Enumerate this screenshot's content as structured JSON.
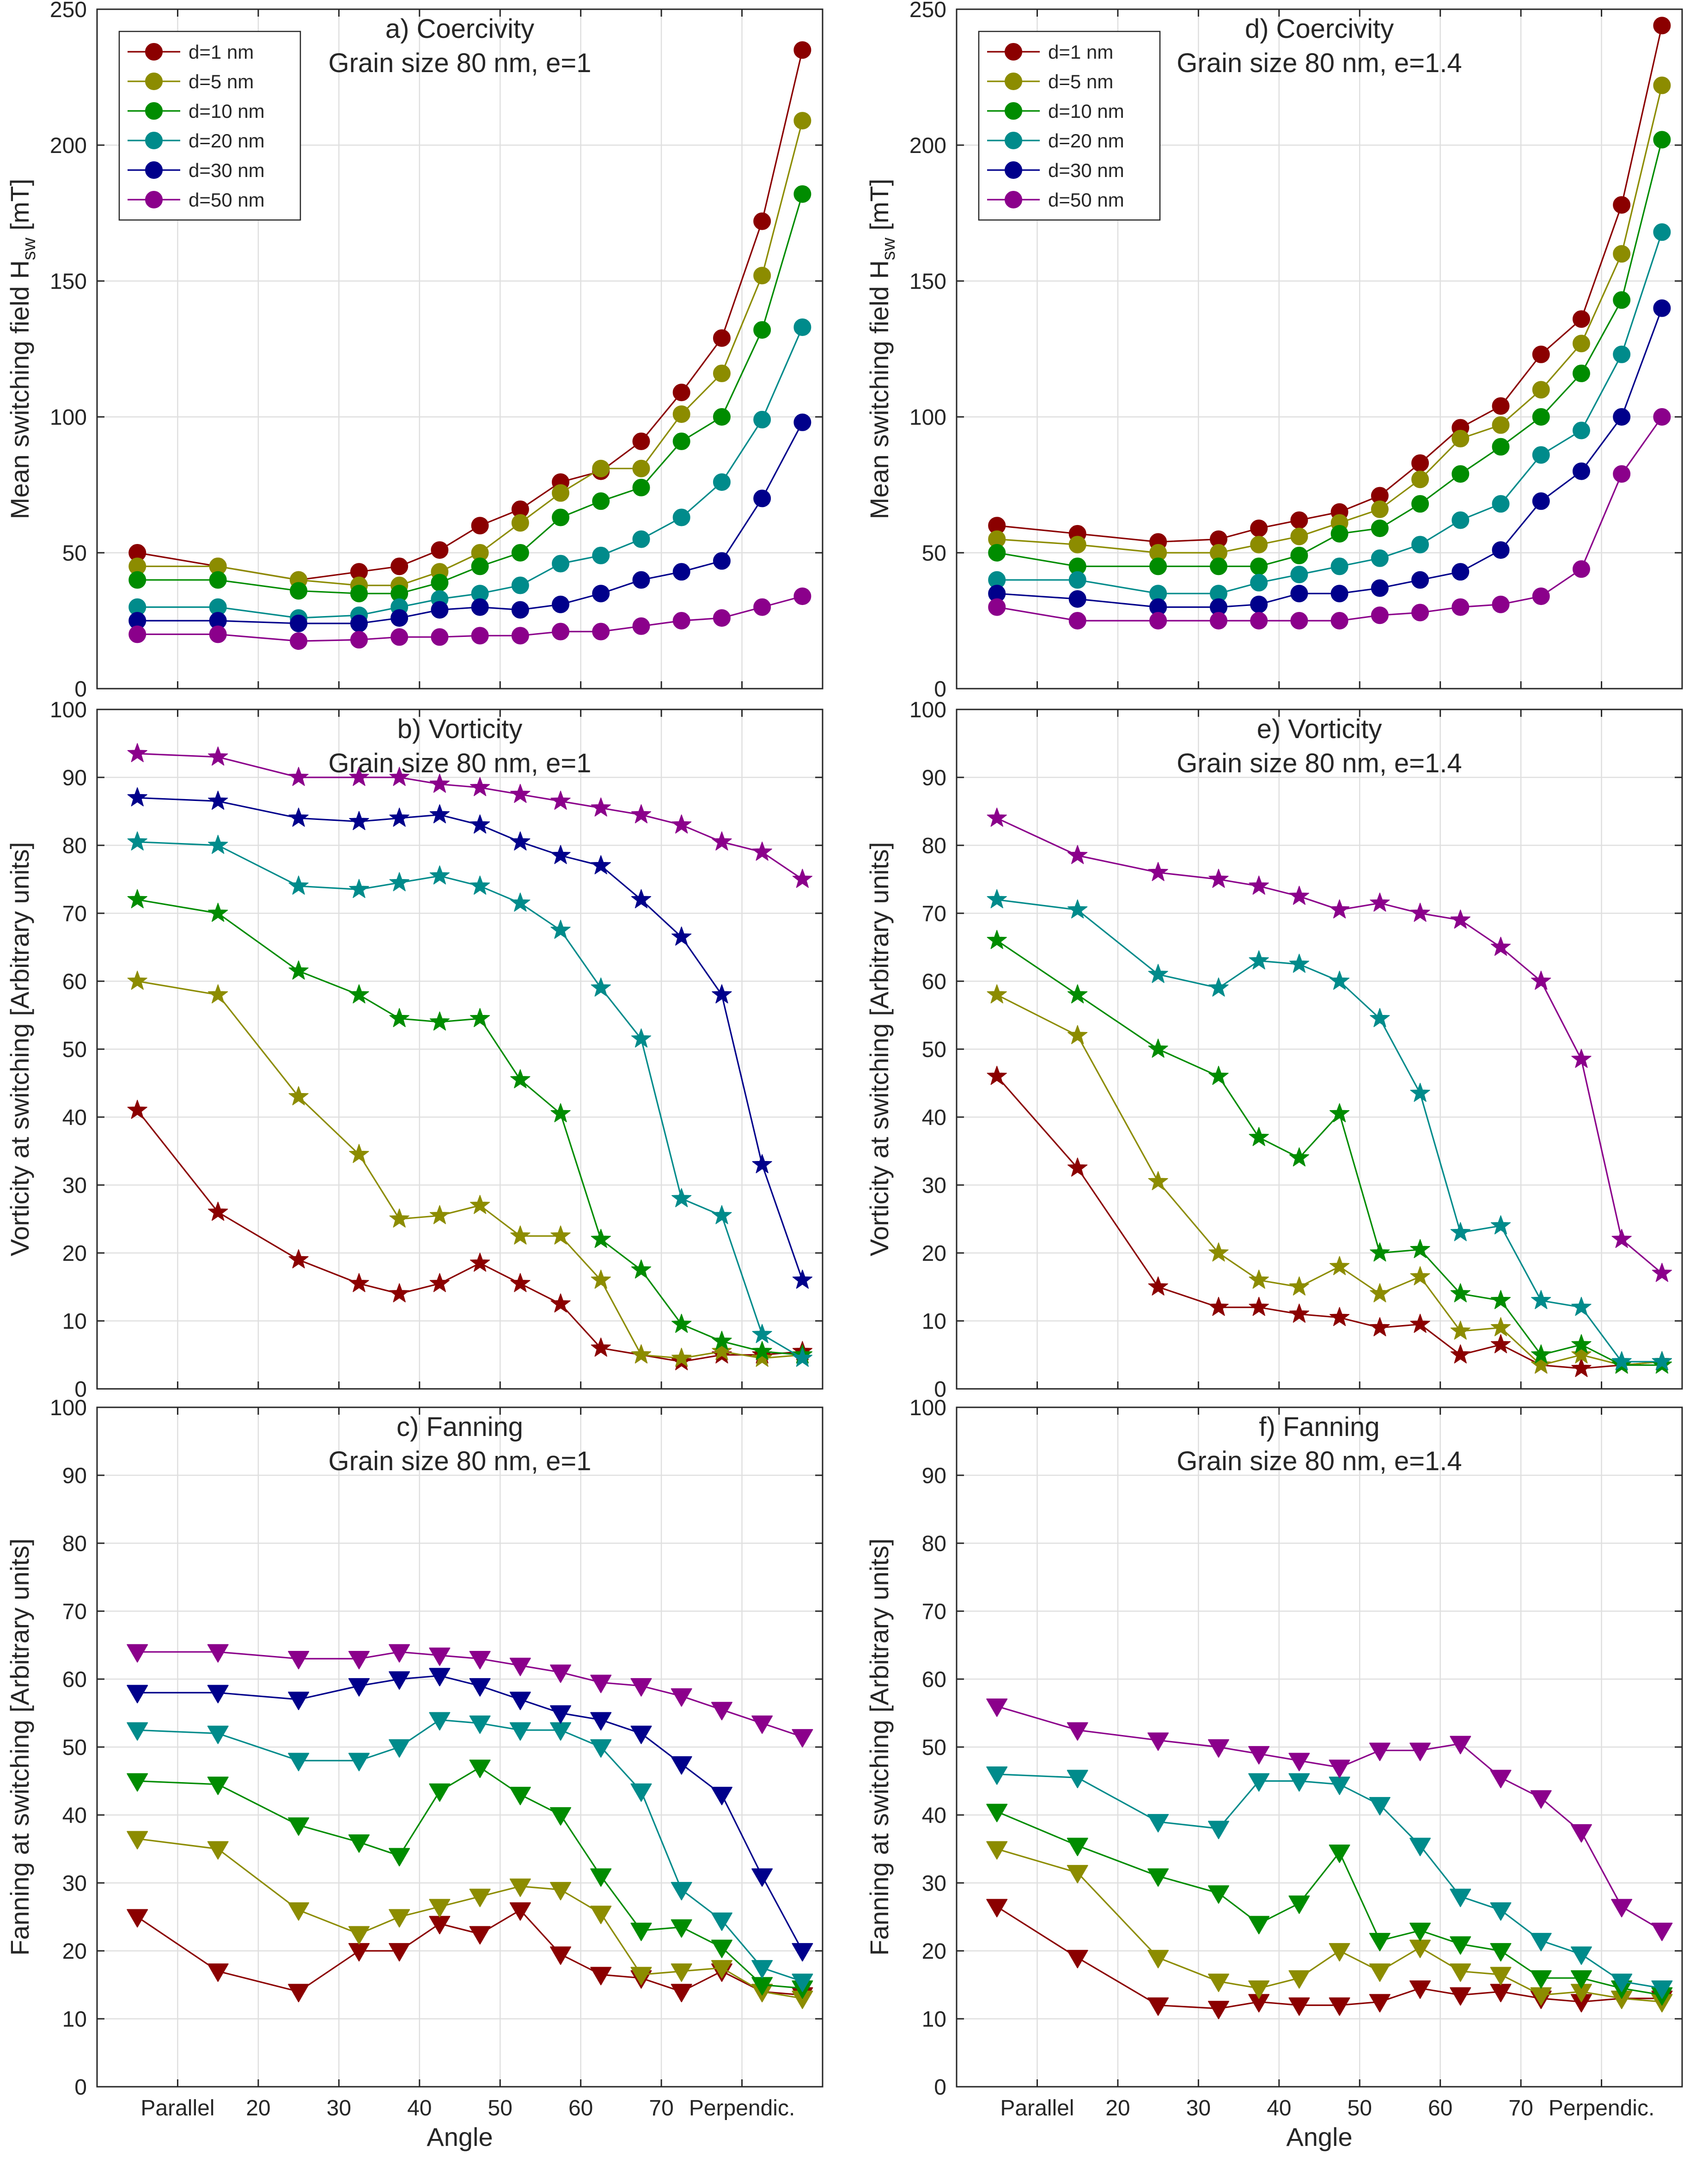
{
  "chart_data": [
    {
      "id": "a",
      "type": "line",
      "title": [
        "a) Coercivity",
        "Grain size 80 nm, e=1"
      ],
      "ylabel": "Mean switching field H",
      "ylabel_sub": "sw",
      "ylabel_unit": " [mT]",
      "xlabel": "",
      "x": [
        5,
        15,
        25,
        32.5,
        37.5,
        42.5,
        47.5,
        52.5,
        57.5,
        62.5,
        67.5,
        72.5,
        77.5,
        82.5,
        87.5
      ],
      "xlim": [
        0,
        90
      ],
      "ylim": [
        0,
        250
      ],
      "yticks": [
        0,
        50,
        100,
        150,
        200,
        250
      ],
      "marker": "circle",
      "legend": "top-left",
      "grid": true,
      "series": [
        {
          "name": "d=1 nm",
          "color": "#8b0000",
          "values": [
            50,
            45,
            40,
            43,
            45,
            51,
            60,
            66,
            76,
            80,
            91,
            109,
            129,
            172,
            235
          ]
        },
        {
          "name": "d=5 nm",
          "color": "#8c8c00",
          "values": [
            45,
            45,
            40,
            38,
            38,
            43,
            50,
            61,
            72,
            81,
            81,
            101,
            116,
            152,
            209
          ]
        },
        {
          "name": "d=10 nm",
          "color": "#008c00",
          "values": [
            40,
            40,
            36,
            35,
            35,
            39,
            45,
            50,
            63,
            69,
            74,
            91,
            100,
            132,
            182
          ]
        },
        {
          "name": "d=20 nm",
          "color": "#008b8b",
          "values": [
            30,
            30,
            26,
            27,
            30,
            33,
            35,
            38,
            46,
            49,
            55,
            63,
            76,
            99,
            133
          ]
        },
        {
          "name": "d=30 nm",
          "color": "#00008b",
          "values": [
            25,
            25,
            24,
            24,
            26,
            29,
            30,
            29,
            31,
            35,
            40,
            43,
            47,
            70,
            98
          ]
        },
        {
          "name": "d=50 nm",
          "color": "#8b008b",
          "values": [
            20,
            20,
            17.5,
            18,
            19,
            19,
            19.5,
            19.5,
            21,
            21,
            23,
            25,
            26,
            30,
            34
          ]
        }
      ]
    },
    {
      "id": "d",
      "type": "line",
      "title": [
        "d) Coercivity",
        "Grain size 80 nm, e=1.4"
      ],
      "ylabel": "Mean switching field H",
      "ylabel_sub": "sw",
      "ylabel_unit": " [mT]",
      "xlabel": "",
      "x": [
        5,
        15,
        25,
        32.5,
        37.5,
        42.5,
        47.5,
        52.5,
        57.5,
        62.5,
        67.5,
        72.5,
        77.5,
        82.5,
        87.5
      ],
      "xlim": [
        0,
        90
      ],
      "ylim": [
        0,
        250
      ],
      "yticks": [
        0,
        50,
        100,
        150,
        200,
        250
      ],
      "marker": "circle",
      "legend": "top-left",
      "grid": true,
      "series": [
        {
          "name": "d=1 nm",
          "color": "#8b0000",
          "values": [
            60,
            57,
            54,
            55,
            59,
            62,
            65,
            71,
            83,
            96,
            104,
            123,
            136,
            178,
            244
          ]
        },
        {
          "name": "d=5 nm",
          "color": "#8c8c00",
          "values": [
            55,
            53,
            50,
            50,
            53,
            56,
            61,
            66,
            77,
            92,
            97,
            110,
            127,
            160,
            222
          ]
        },
        {
          "name": "d=10 nm",
          "color": "#008c00",
          "values": [
            50,
            45,
            45,
            45,
            45,
            49,
            57,
            59,
            68,
            79,
            89,
            100,
            116,
            143,
            202
          ]
        },
        {
          "name": "d=20 nm",
          "color": "#008b8b",
          "values": [
            40,
            40,
            35,
            35,
            39,
            42,
            45,
            48,
            53,
            62,
            68,
            86,
            95,
            123,
            168
          ]
        },
        {
          "name": "d=30 nm",
          "color": "#00008b",
          "values": [
            35,
            33,
            30,
            30,
            31,
            35,
            35,
            37,
            40,
            43,
            51,
            69,
            80,
            100,
            140
          ]
        },
        {
          "name": "d=50 nm",
          "color": "#8b008b",
          "values": [
            30,
            25,
            25,
            25,
            25,
            25,
            25,
            27,
            28,
            30,
            31,
            34,
            44,
            79,
            100
          ]
        }
      ]
    },
    {
      "id": "b",
      "type": "line",
      "title": [
        "b) Vorticity",
        "Grain size 80 nm, e=1"
      ],
      "ylabel": "Vorticity at switching [Arbitrary units]",
      "xlabel": "",
      "x": [
        5,
        15,
        25,
        32.5,
        37.5,
        42.5,
        47.5,
        52.5,
        57.5,
        62.5,
        67.5,
        72.5,
        77.5,
        82.5,
        87.5
      ],
      "xlim": [
        0,
        90
      ],
      "ylim": [
        0,
        100
      ],
      "yticks": [
        0,
        10,
        20,
        30,
        40,
        50,
        60,
        70,
        80,
        90,
        100
      ],
      "marker": "star",
      "grid": true,
      "series": [
        {
          "name": "d=1 nm",
          "color": "#8b0000",
          "values": [
            41,
            26,
            19,
            15.5,
            14,
            15.5,
            18.5,
            15.5,
            12.5,
            6,
            5,
            4,
            5,
            5,
            5.5
          ]
        },
        {
          "name": "d=5 nm",
          "color": "#8c8c00",
          "values": [
            60,
            58,
            43,
            34.5,
            25,
            25.5,
            27,
            22.5,
            22.5,
            16,
            5,
            4.5,
            5.5,
            4.5,
            5
          ]
        },
        {
          "name": "d=10 nm",
          "color": "#008c00",
          "values": [
            72,
            70,
            61.5,
            58,
            54.5,
            54,
            54.5,
            45.5,
            40.5,
            22,
            17.5,
            9.5,
            7,
            5.5,
            5
          ]
        },
        {
          "name": "d=20 nm",
          "color": "#008b8b",
          "values": [
            80.5,
            80,
            74,
            73.5,
            74.5,
            75.5,
            74,
            71.5,
            67.5,
            59,
            51.5,
            28,
            25.5,
            8,
            4.5
          ]
        },
        {
          "name": "d=30 nm",
          "color": "#00008b",
          "values": [
            87,
            86.5,
            84,
            83.5,
            84,
            84.5,
            83,
            80.5,
            78.5,
            77,
            72,
            66.5,
            58,
            33,
            16
          ]
        },
        {
          "name": "d=50 nm",
          "color": "#8b008b",
          "values": [
            93.5,
            93,
            90,
            90,
            90,
            89,
            88.5,
            87.5,
            86.5,
            85.5,
            84.5,
            83,
            80.5,
            79,
            75
          ]
        }
      ]
    },
    {
      "id": "e",
      "type": "line",
      "title": [
        "e) Vorticity",
        "Grain size 80 nm, e=1.4"
      ],
      "ylabel": "Vorticity at switching [Arbitrary units]",
      "xlabel": "",
      "x": [
        5,
        15,
        25,
        32.5,
        37.5,
        42.5,
        47.5,
        52.5,
        57.5,
        62.5,
        67.5,
        72.5,
        77.5,
        82.5,
        87.5
      ],
      "xlim": [
        0,
        90
      ],
      "ylim": [
        0,
        100
      ],
      "yticks": [
        0,
        10,
        20,
        30,
        40,
        50,
        60,
        70,
        80,
        90,
        100
      ],
      "marker": "star",
      "grid": true,
      "series": [
        {
          "name": "d=1 nm",
          "color": "#8b0000",
          "values": [
            46,
            32.5,
            15,
            12,
            12,
            11,
            10.5,
            9,
            9.5,
            5,
            6.5,
            3.5,
            3,
            3.5,
            4
          ]
        },
        {
          "name": "d=5 nm",
          "color": "#8c8c00",
          "values": [
            58,
            52,
            30.5,
            20,
            16,
            15,
            18,
            14,
            16.5,
            8.5,
            9,
            3.5,
            5,
            3.5,
            4
          ]
        },
        {
          "name": "d=10 nm",
          "color": "#008c00",
          "values": [
            66,
            58,
            50,
            46,
            37,
            34,
            40.5,
            20,
            20.5,
            14,
            13,
            5,
            6.5,
            3.5,
            3.5
          ]
        },
        {
          "name": "d=20 nm",
          "color": "#008b8b",
          "values": [
            72,
            70.5,
            61,
            59,
            63,
            62.5,
            60,
            54.5,
            43.5,
            23,
            24,
            13,
            12,
            4,
            4
          ]
        },
        {
          "name": "d=50 nm",
          "color": "#8b008b",
          "values": [
            84,
            78.5,
            76,
            75,
            74,
            72.5,
            70.5,
            71.5,
            70,
            69,
            65,
            60,
            48.5,
            22,
            17
          ]
        }
      ]
    },
    {
      "id": "c",
      "type": "line",
      "title": [
        "c) Fanning",
        "Grain size 80 nm, e=1"
      ],
      "ylabel": "Fanning at switching [Arbitrary units]",
      "xlabel": "Angle",
      "x": [
        5,
        15,
        25,
        32.5,
        37.5,
        42.5,
        47.5,
        52.5,
        57.5,
        62.5,
        67.5,
        72.5,
        77.5,
        82.5,
        87.5
      ],
      "xlim": [
        0,
        90
      ],
      "xticks": [
        10,
        20,
        30,
        40,
        50,
        60,
        70,
        80
      ],
      "xticklabels": [
        "Parallel",
        "20",
        "30",
        "40",
        "50",
        "60",
        "70",
        "Perpendic."
      ],
      "ylim": [
        0,
        100
      ],
      "yticks": [
        0,
        10,
        20,
        30,
        40,
        50,
        60,
        70,
        80,
        90,
        100
      ],
      "marker": "triangle-down",
      "grid": true,
      "series": [
        {
          "name": "d=1 nm",
          "color": "#8b0000",
          "values": [
            25,
            17,
            14,
            20,
            20,
            24,
            22.5,
            26,
            19.5,
            16.5,
            16,
            14,
            17,
            14,
            13.5
          ]
        },
        {
          "name": "d=5 nm",
          "color": "#8c8c00",
          "values": [
            36.5,
            35,
            26,
            22.5,
            25,
            26.5,
            28,
            29.5,
            29,
            25.5,
            16.5,
            17,
            17.5,
            14,
            13
          ]
        },
        {
          "name": "d=10 nm",
          "color": "#008c00",
          "values": [
            45,
            44.5,
            38.5,
            36,
            34,
            43.5,
            47,
            43,
            40,
            31,
            23,
            23.5,
            20.5,
            15,
            14.5
          ]
        },
        {
          "name": "d=20 nm",
          "color": "#008b8b",
          "values": [
            52.5,
            52,
            48,
            48,
            50,
            54,
            53.5,
            52.5,
            52.5,
            50,
            43.5,
            29,
            24.5,
            17.5,
            15.5
          ]
        },
        {
          "name": "d=30 nm",
          "color": "#00008b",
          "values": [
            58,
            58,
            57,
            59,
            60,
            60.5,
            59,
            57,
            55,
            54,
            52,
            47.5,
            43,
            31,
            20
          ]
        },
        {
          "name": "d=50 nm",
          "color": "#8b008b",
          "values": [
            64,
            64,
            63,
            63,
            64,
            63.5,
            63,
            62,
            61,
            59.5,
            59,
            57.5,
            55.5,
            53.5,
            51.5
          ]
        }
      ]
    },
    {
      "id": "f",
      "type": "line",
      "title": [
        "f) Fanning",
        "Grain size 80 nm, e=1.4"
      ],
      "ylabel": "Fanning at switching [Arbitrary units]",
      "xlabel": "Angle",
      "x": [
        5,
        15,
        25,
        32.5,
        37.5,
        42.5,
        47.5,
        52.5,
        57.5,
        62.5,
        67.5,
        72.5,
        77.5,
        82.5,
        87.5
      ],
      "xlim": [
        0,
        90
      ],
      "xticks": [
        10,
        20,
        30,
        40,
        50,
        60,
        70,
        80
      ],
      "xticklabels": [
        "Parallel",
        "20",
        "30",
        "40",
        "50",
        "60",
        "70",
        "Perpendic."
      ],
      "ylim": [
        0,
        100
      ],
      "yticks": [
        0,
        10,
        20,
        30,
        40,
        50,
        60,
        70,
        80,
        90,
        100
      ],
      "marker": "triangle-down",
      "grid": true,
      "series": [
        {
          "name": "d=1 nm",
          "color": "#8b0000",
          "values": [
            26.5,
            19,
            12,
            11.5,
            12.5,
            12,
            12,
            12.5,
            14.5,
            13.5,
            14,
            13,
            12.5,
            13,
            13
          ]
        },
        {
          "name": "d=5 nm",
          "color": "#8c8c00",
          "values": [
            35,
            31.5,
            19,
            15.5,
            14.5,
            16,
            20,
            17,
            20.5,
            17,
            16.5,
            13.5,
            14,
            13,
            12.5
          ]
        },
        {
          "name": "d=10 nm",
          "color": "#008c00",
          "values": [
            40.5,
            35.5,
            31,
            28.5,
            24,
            27,
            34.5,
            21.5,
            23,
            21,
            20,
            16,
            16,
            14.5,
            13.5
          ]
        },
        {
          "name": "d=20 nm",
          "color": "#008b8b",
          "values": [
            46,
            45.5,
            39,
            38,
            45,
            45,
            44.5,
            41.5,
            35.5,
            28,
            26,
            21.5,
            19.5,
            15.5,
            14.5
          ]
        },
        {
          "name": "d=50 nm",
          "color": "#8b008b",
          "values": [
            56,
            52.5,
            51,
            50,
            49,
            48,
            47,
            49.5,
            49.5,
            50.5,
            45.5,
            42.5,
            37.5,
            26.5,
            23
          ]
        }
      ]
    }
  ]
}
